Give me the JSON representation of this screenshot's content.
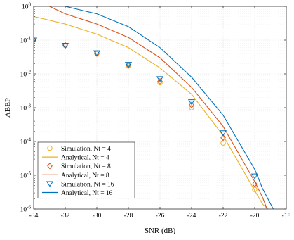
{
  "chart_data": {
    "type": "line",
    "xlabel": "SNR (dB)",
    "ylabel": "ABEP",
    "xlim": [
      -34,
      -18
    ],
    "ylim_log10": [
      -6,
      0
    ],
    "yscale": "log",
    "grid": true,
    "legend_position": "bottom-left",
    "x_ticks": [
      "-34",
      "-32",
      "-30",
      "-28",
      "-26",
      "-24",
      "-22",
      "-20",
      "-18"
    ],
    "y_tick_exponents": [
      "0",
      "-1",
      "-2",
      "-3",
      "-4",
      "-5",
      "-6"
    ],
    "y_tick_base": "10",
    "series": [
      {
        "name": "Simulation, Nt = 4",
        "kind": "markers",
        "marker": "circle",
        "color": "#EDB120",
        "x": [
          -34,
          -32,
          -30,
          -28,
          -26,
          -24,
          -22,
          -20
        ],
        "y": [
          0.1,
          0.07,
          0.04,
          0.017,
          0.0055,
          0.001,
          9e-05,
          3.8e-06
        ]
      },
      {
        "name": "Analytical, Nt = 4",
        "kind": "line",
        "color": "#EDB120",
        "x": [
          -34,
          -32,
          -30,
          -28,
          -26,
          -24,
          -22,
          -20,
          -19.5,
          -19
        ],
        "y": [
          0.5,
          0.3,
          0.15,
          0.06,
          0.015,
          0.0025,
          0.00015,
          3.5e-06,
          1.4e-06,
          8.5e-07
        ]
      },
      {
        "name": "Simulation, Nt = 8",
        "kind": "markers",
        "marker": "diamond",
        "color": "#D95319",
        "x": [
          -34,
          -32,
          -30,
          -28,
          -26,
          -24,
          -22,
          -20
        ],
        "y": [
          0.1,
          0.07,
          0.04,
          0.018,
          0.006,
          0.0012,
          0.00013,
          5.5e-06
        ]
      },
      {
        "name": "Analytical, Nt = 8",
        "kind": "line",
        "color": "#D95319",
        "x": [
          -33,
          -32,
          -30,
          -28,
          -26,
          -24,
          -22,
          -20,
          -19.5,
          -19.2
        ],
        "y": [
          1,
          0.6,
          0.3,
          0.12,
          0.03,
          0.004,
          0.00028,
          6.5e-06,
          2.2e-06,
          9.5e-07
        ]
      },
      {
        "name": "Simulation, Nt = 16",
        "kind": "markers",
        "marker": "triangle-down",
        "color": "#0072BD",
        "x": [
          -34,
          -32,
          -30,
          -28,
          -26,
          -24,
          -22,
          -20
        ],
        "y": [
          0.1,
          0.07,
          0.042,
          0.019,
          0.0072,
          0.0015,
          0.00018,
          9.5e-06
        ]
      },
      {
        "name": "Analytical, Nt = 16",
        "kind": "line",
        "color": "#0072BD",
        "x": [
          -32,
          -30,
          -28,
          -26,
          -24,
          -22,
          -20,
          -19.5,
          -18.8
        ],
        "y": [
          1,
          0.6,
          0.25,
          0.06,
          0.008,
          0.0006,
          1.5e-05,
          4e-06,
          9.5e-07
        ]
      }
    ]
  }
}
